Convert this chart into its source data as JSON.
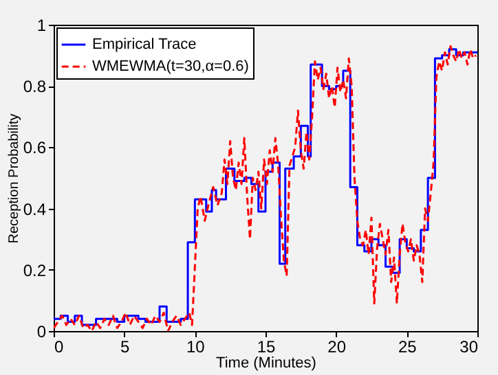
{
  "chart_data": {
    "type": "line",
    "xlabel": "Time (Minutes)",
    "ylabel": "Reception Probability",
    "xlim": [
      0,
      30
    ],
    "xticks": [
      0,
      5,
      10,
      15,
      20,
      25,
      30
    ],
    "ylim": [
      0,
      1
    ],
    "yticks": [
      0,
      0.2,
      0.4,
      0.6,
      0.8,
      1
    ],
    "grid": false,
    "legend": "top left",
    "series": [
      {
        "name": "Empirical Trace",
        "type": "step",
        "line_style": "solid",
        "color": "#0000ff",
        "x": [
          0,
          0.5,
          1,
          1.5,
          2,
          3,
          4,
          4.5,
          5,
          6,
          6.5,
          7.5,
          8,
          9,
          9.5,
          10,
          10.8,
          11.2,
          11.5,
          12.2,
          12.8,
          13.5,
          14,
          14.5,
          15,
          15.5,
          16,
          16.4,
          17,
          17.5,
          18,
          18.2,
          19,
          19.5,
          20,
          20.5,
          21,
          21.5,
          22,
          22.5,
          23,
          23.5,
          24,
          24.5,
          25,
          25.5,
          26,
          26.5,
          27,
          27.5,
          28,
          28.5,
          29,
          30
        ],
        "values": [
          0.04,
          0.05,
          0.03,
          0.05,
          0.02,
          0.04,
          0.04,
          0.03,
          0.05,
          0.04,
          0.03,
          0.08,
          0.03,
          0.04,
          0.29,
          0.43,
          0.39,
          0.46,
          0.43,
          0.53,
          0.49,
          0.5,
          0.48,
          0.39,
          0.52,
          0.55,
          0.22,
          0.53,
          0.57,
          0.67,
          0.57,
          0.87,
          0.8,
          0.79,
          0.8,
          0.85,
          0.47,
          0.28,
          0.26,
          0.3,
          0.28,
          0.21,
          0.19,
          0.3,
          0.27,
          0.26,
          0.33,
          0.5,
          0.89,
          0.9,
          0.92,
          0.9,
          0.91,
          0.91
        ]
      },
      {
        "name": "WMEWMA(t=30,α=0.6)",
        "type": "line",
        "line_style": "dashed",
        "color": "#ff0000",
        "x": [
          0,
          0.3,
          0.6,
          0.9,
          1.2,
          1.5,
          1.8,
          2.1,
          2.4,
          2.7,
          3,
          3.3,
          3.6,
          3.9,
          4.2,
          4.5,
          4.8,
          5.1,
          5.4,
          5.7,
          6,
          6.3,
          6.6,
          6.9,
          7.2,
          7.5,
          7.8,
          8.1,
          8.4,
          8.7,
          9,
          9.3,
          9.6,
          9.8,
          10,
          10.2,
          10.4,
          10.7,
          11,
          11.3,
          11.6,
          11.9,
          12.1,
          12.3,
          12.5,
          12.7,
          12.9,
          13.1,
          13.3,
          13.5,
          13.7,
          13.9,
          14.1,
          14.3,
          14.5,
          14.7,
          14.9,
          15.1,
          15.3,
          15.5,
          15.7,
          15.9,
          16.1,
          16.3,
          16.5,
          16.7,
          16.9,
          17.1,
          17.3,
          17.5,
          17.7,
          17.9,
          18.1,
          18.3,
          18.5,
          18.7,
          18.9,
          19.1,
          19.3,
          19.5,
          19.7,
          19.9,
          20.1,
          20.3,
          20.5,
          20.7,
          20.9,
          21.1,
          21.3,
          21.5,
          21.7,
          21.9,
          22.1,
          22.3,
          22.5,
          22.7,
          22.9,
          23.1,
          23.3,
          23.5,
          23.7,
          23.9,
          24.1,
          24.3,
          24.5,
          24.7,
          24.9,
          25.1,
          25.3,
          25.5,
          25.7,
          25.9,
          26.1,
          26.3,
          26.5,
          26.7,
          26.9,
          27.1,
          27.3,
          27.5,
          27.7,
          27.9,
          28.1,
          28.3,
          28.5,
          28.7,
          28.9,
          29.1,
          29.3,
          29.5,
          29.7,
          29.9
        ],
        "values": [
          0.01,
          0.03,
          0.05,
          0.02,
          0.04,
          0.02,
          0.05,
          0.01,
          0.02,
          0.0,
          0.03,
          0.01,
          0.04,
          0.02,
          0.05,
          0.01,
          0.03,
          0.06,
          0.02,
          0.05,
          0.03,
          0.01,
          0.04,
          0.02,
          0.05,
          0.03,
          0.06,
          0.0,
          0.03,
          0.05,
          0.02,
          0.04,
          0.06,
          0.02,
          0.21,
          0.4,
          0.44,
          0.36,
          0.42,
          0.47,
          0.41,
          0.45,
          0.56,
          0.48,
          0.62,
          0.5,
          0.46,
          0.55,
          0.48,
          0.63,
          0.44,
          0.3,
          0.5,
          0.46,
          0.52,
          0.4,
          0.56,
          0.48,
          0.59,
          0.52,
          0.63,
          0.54,
          0.37,
          0.23,
          0.18,
          0.54,
          0.57,
          0.6,
          0.72,
          0.59,
          0.53,
          0.65,
          0.56,
          0.7,
          0.88,
          0.82,
          0.86,
          0.79,
          0.84,
          0.76,
          0.8,
          0.73,
          0.86,
          0.78,
          0.82,
          0.76,
          0.89,
          0.8,
          0.5,
          0.36,
          0.3,
          0.28,
          0.33,
          0.25,
          0.37,
          0.09,
          0.27,
          0.35,
          0.3,
          0.25,
          0.33,
          0.16,
          0.24,
          0.09,
          0.25,
          0.35,
          0.29,
          0.26,
          0.3,
          0.23,
          0.28,
          0.25,
          0.16,
          0.4,
          0.36,
          0.45,
          0.55,
          0.83,
          0.88,
          0.85,
          0.91,
          0.87,
          0.93,
          0.9,
          0.88,
          0.92,
          0.89,
          0.91,
          0.87,
          0.92,
          0.89,
          0.9
        ]
      }
    ]
  }
}
